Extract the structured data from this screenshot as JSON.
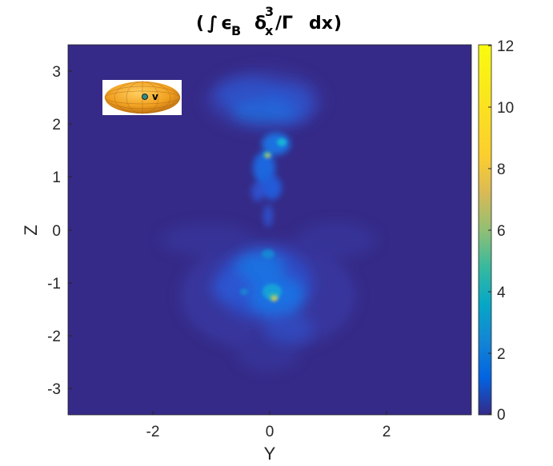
{
  "title": {
    "open": "(",
    "integral": "∫",
    "epsilon": "ϵ",
    "epsilon_sub": "B",
    "delta": "δ",
    "delta_sup": "3",
    "delta_sub": "x",
    "slash_gamma": "/Γ",
    "dx": "dx",
    "close": ")"
  },
  "axes": {
    "xlabel": "Y",
    "ylabel": "Z",
    "xticks": [
      "-2",
      "0",
      "2"
    ],
    "yticks": [
      "3",
      "2",
      "1",
      "0",
      "-1",
      "-2",
      "-3"
    ],
    "xlim": [
      -3.5,
      3.5
    ],
    "ylim": [
      -3.5,
      3.5
    ]
  },
  "colorbar": {
    "ticks": [
      "12",
      "10",
      "8",
      "6",
      "4",
      "2",
      "0"
    ],
    "range": [
      0,
      12
    ],
    "colormap": "parula"
  },
  "colors": {
    "background_field": "#352a87",
    "glow_mid": "#1f6fe0",
    "glow_bright": "#12b5d4",
    "hotspot": "#e6cf22",
    "inset_body": "#f0a020",
    "inset_marker": "#2e8b8b"
  },
  "inset": {
    "glyph": "v"
  }
}
